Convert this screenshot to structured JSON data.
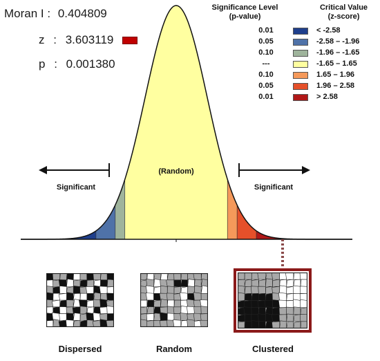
{
  "stats": {
    "moran_label": "Moran I :",
    "moran_value": "0.404809",
    "z_label": "z",
    "z_value": "3.603119",
    "p_label": "p",
    "p_value": "0.001380",
    "z_marker_color": "#c00000"
  },
  "legend": {
    "p_header_line1": "Significance Level",
    "p_header_line2": "(p-value)",
    "z_header_line1": "Critical Value",
    "z_header_line2": "(z-score)",
    "rows": [
      {
        "p": "0.01",
        "color": "#1f3f8c",
        "z": "< -2.58"
      },
      {
        "p": "0.05",
        "color": "#4f72a8",
        "z": "-2.58 – -1.96"
      },
      {
        "p": "0.10",
        "color": "#9fb49c",
        "z": "-1.96 – -1.65"
      },
      {
        "p": "---",
        "color": "#ffffa0",
        "z": "-1.65 – 1.65"
      },
      {
        "p": "0.10",
        "color": "#f5995a",
        "z": "1.65 – 1.96"
      },
      {
        "p": "0.05",
        "color": "#e5502a",
        "z": "1.96 – 2.58"
      },
      {
        "p": "0.01",
        "color": "#b01818",
        "z": "> 2.58"
      }
    ]
  },
  "curve": {
    "random_label": "(Random)",
    "left_label": "Significant",
    "right_label": "Significant"
  },
  "maps": {
    "dispersed_label": "Dispersed",
    "random_label": "Random",
    "clustered_label": "Clustered",
    "highlight_color": "#8b1a1a"
  }
}
